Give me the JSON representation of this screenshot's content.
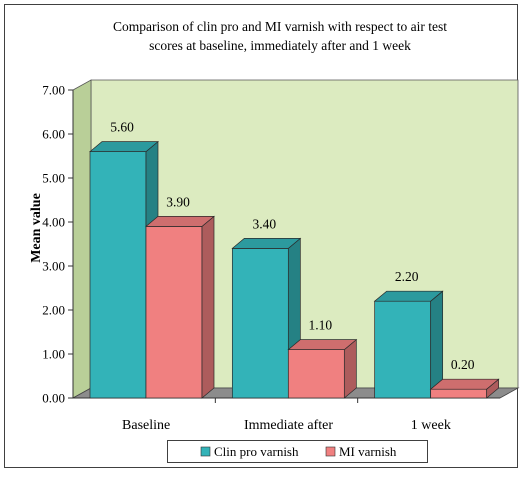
{
  "colors": {
    "wall": "#dcebc0",
    "floor": "#8c8c8c",
    "series_0": "#33b3b8",
    "series_1": "#f08080",
    "frame": "#404040"
  },
  "chart_data": {
    "type": "bar",
    "title_lines": [
      "Comparison of clin pro and MI varnish with respect to air test",
      "scores at baseline, immediately after and 1 week"
    ],
    "xlabel": "",
    "ylabel": "Mean value",
    "categories": [
      "Baseline",
      "Immediate after",
      "1 week"
    ],
    "ylim": [
      0,
      7
    ],
    "yticks": [
      "0.00",
      "1.00",
      "2.00",
      "3.00",
      "4.00",
      "5.00",
      "6.00",
      "7.00"
    ],
    "series": [
      {
        "name": "Clin pro varnish",
        "values": [
          5.6,
          3.4,
          2.2
        ],
        "labels": [
          "5.60",
          "3.40",
          "2.20"
        ]
      },
      {
        "name": "MI varnish",
        "values": [
          3.9,
          1.1,
          0.2
        ],
        "labels": [
          "3.90",
          "1.10",
          "0.20"
        ]
      }
    ],
    "legend_position": "bottom",
    "grid": false,
    "style": "3d"
  }
}
